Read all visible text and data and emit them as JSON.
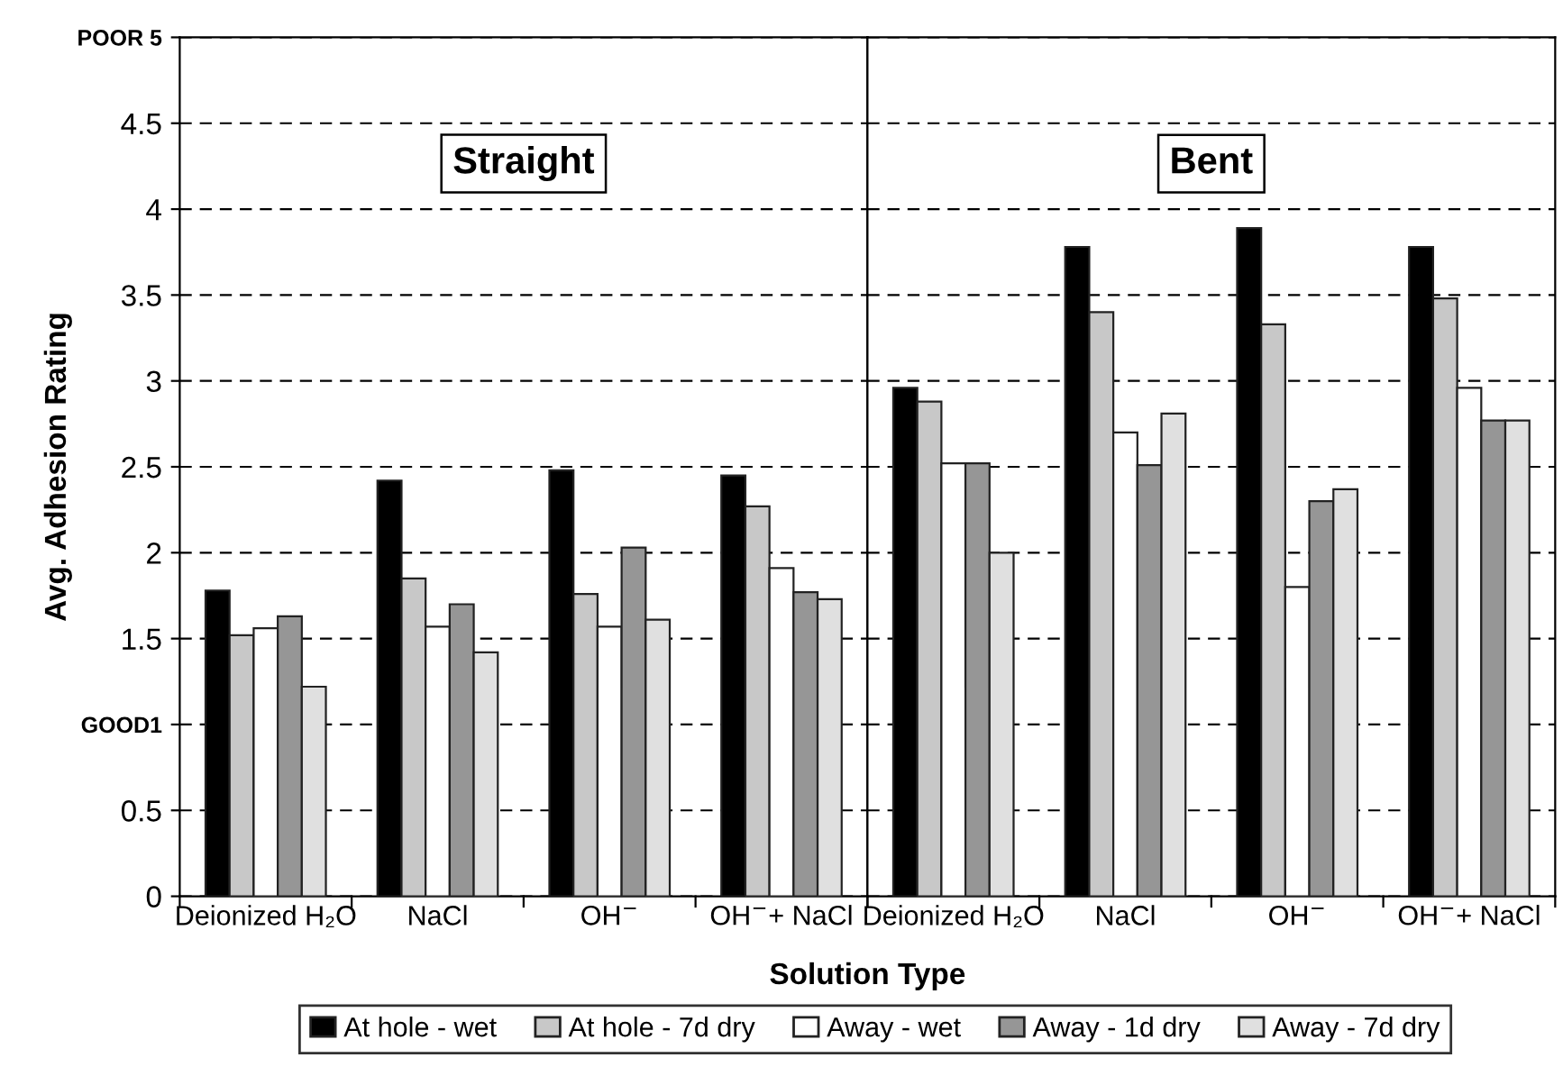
{
  "chart_data": [
    {
      "type": "bar",
      "xlabel": "Solution Type",
      "ylabel": "Avg. Adhesion Rating",
      "categories": [
        "Deionized H₂O",
        "NaCl",
        "OH$^{−}$",
        "OH$^{−}$+ NaCl"
      ],
      "series": [
        {
          "name": "At hole - wet",
          "color": "#000000",
          "values": [
            1.78,
            2.42,
            2.48,
            2.45
          ]
        },
        {
          "name": "At hole - 7d dry",
          "color": "#c8c8c8",
          "values": [
            1.52,
            1.85,
            1.76,
            2.27
          ]
        },
        {
          "name": "Away - wet",
          "color": "#ffffff",
          "values": [
            1.56,
            1.57,
            1.57,
            1.91
          ]
        },
        {
          "name": "Away - 1d dry",
          "color": "#969696",
          "values": [
            1.63,
            1.7,
            2.03,
            1.77
          ]
        },
        {
          "name": "Away - 7d dry",
          "color": "#e0e0e0",
          "values": [
            1.22,
            1.42,
            1.61,
            1.73
          ]
        }
      ],
      "ylim": [
        0,
        5
      ],
      "yticks": [
        0,
        0.5,
        {
          "value": 1,
          "label": "GOOD1"
        },
        1.5,
        2,
        2.5,
        3,
        3.5,
        4,
        4.5,
        {
          "value": 5,
          "label": "POOR 5"
        }
      ],
      "annotations": [
        "Straight"
      ],
      "grid": "y",
      "legend": "bottom"
    },
    {
      "type": "bar",
      "categories": [
        "Deionized H₂O",
        "NaCl",
        "OH$^{−}$",
        "OH$^{−}$+ NaCl"
      ],
      "series": [
        {
          "color": "#000000",
          "values": [
            2.96,
            3.78,
            3.89,
            3.78
          ]
        },
        {
          "color": "#c8c8c8",
          "values": [
            2.88,
            3.4,
            3.33,
            3.48
          ]
        },
        {
          "color": "#ffffff",
          "values": [
            2.52,
            2.7,
            1.8,
            2.96
          ]
        },
        {
          "color": "#969696",
          "values": [
            2.52,
            2.51,
            2.3,
            2.77
          ]
        },
        {
          "color": "#e0e0e0",
          "values": [
            2.0,
            2.81,
            2.37,
            2.77
          ]
        }
      ],
      "ylim": [
        0,
        5
      ],
      "yticks": [
        0,
        0.5,
        1,
        1.5,
        2,
        2.5,
        3,
        3.5,
        4,
        4.5,
        5
      ],
      "tick_labels": "x",
      "annotations": [
        "Bent"
      ],
      "grid": "y"
    }
  ]
}
